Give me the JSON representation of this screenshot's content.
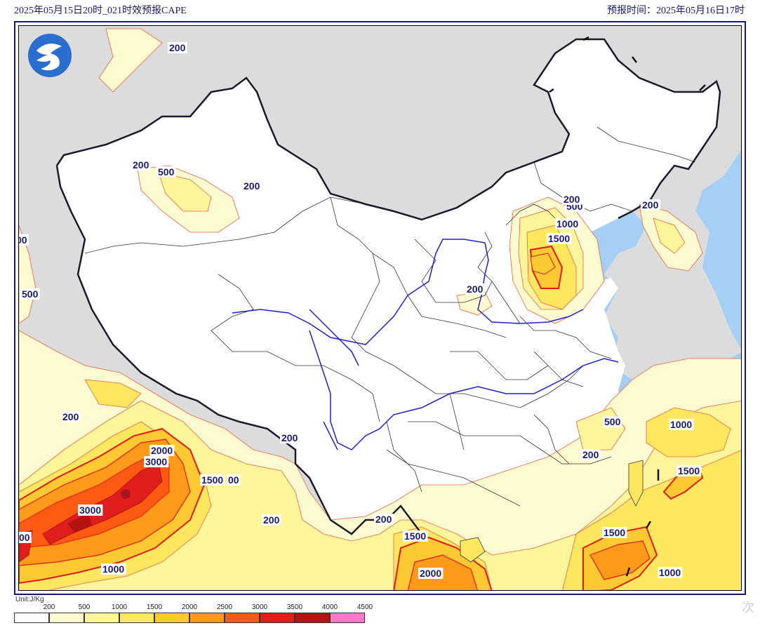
{
  "header": {
    "left_title": "2025年05月15日20时_021时效预报CAPE",
    "right_title": "预报时间：2025年05月16日17时"
  },
  "legend": {
    "unit": "Unit:J/Kg",
    "ticks": [
      "200",
      "500",
      "1000",
      "1500",
      "2000",
      "2500",
      "3000",
      "3500",
      "4000",
      "4500"
    ],
    "colors": [
      "#ffffff",
      "#fffbd0",
      "#fff59a",
      "#ffe860",
      "#ffc933",
      "#ff9a1a",
      "#ff5a14",
      "#e11e1e",
      "#b31313",
      "#8b1a2a",
      "#ff79c9"
    ]
  },
  "contour_labels": [
    "200",
    "200",
    "500",
    "200",
    "500",
    "1000",
    "1500",
    "200",
    "200",
    "200",
    "500",
    "200",
    "500",
    "200",
    "1000",
    "1500",
    "200",
    "1500",
    "1000",
    "1500",
    "2000",
    "1500",
    "200",
    "200",
    "2000",
    "3000",
    "3000",
    "1500",
    "00",
    "00",
    "1000",
    "200",
    "1500",
    "2000",
    "1000",
    "1000",
    "200",
    "00"
  ],
  "colors": {
    "frame": "#1a1a6a",
    "sea": "#a6cff5",
    "outside_land": "#dcdcdc",
    "river": "#1f1fcc",
    "border": "#1a1a2a"
  },
  "watermark": "次"
}
